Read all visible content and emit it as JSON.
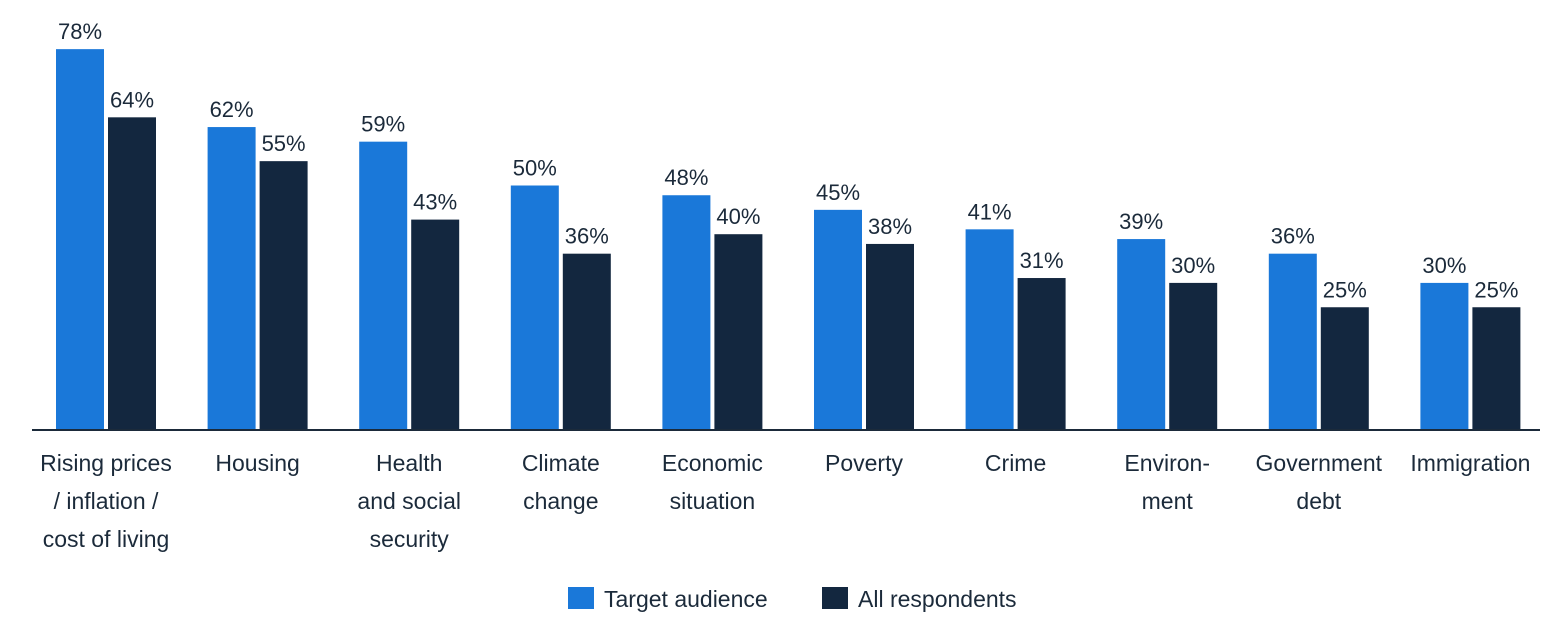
{
  "chart_data": {
    "type": "bar",
    "title": "",
    "xlabel": "",
    "ylabel": "",
    "ylim": [
      0,
      80
    ],
    "grid": false,
    "legend_position": "bottom-center",
    "value_suffix": "%",
    "categories": [
      [
        "Rising prices",
        "/ inflation /",
        "cost of living"
      ],
      [
        "Housing"
      ],
      [
        "Health",
        "and social",
        "security"
      ],
      [
        "Climate",
        "change"
      ],
      [
        "Economic",
        "situation"
      ],
      [
        "Poverty"
      ],
      [
        "Crime"
      ],
      [
        "Environ-",
        "ment"
      ],
      [
        "Government",
        "debt"
      ],
      [
        "Immigration"
      ]
    ],
    "series": [
      {
        "name": "Target audience",
        "color": "#1a78d9",
        "values": [
          78,
          62,
          59,
          50,
          48,
          45,
          41,
          39,
          36,
          30
        ]
      },
      {
        "name": "All respondents",
        "color": "#13273f",
        "values": [
          64,
          55,
          43,
          36,
          40,
          38,
          31,
          30,
          25,
          25
        ]
      }
    ]
  },
  "colors": {
    "axis": "#1b2a3a",
    "text": "#1b2a3a"
  }
}
